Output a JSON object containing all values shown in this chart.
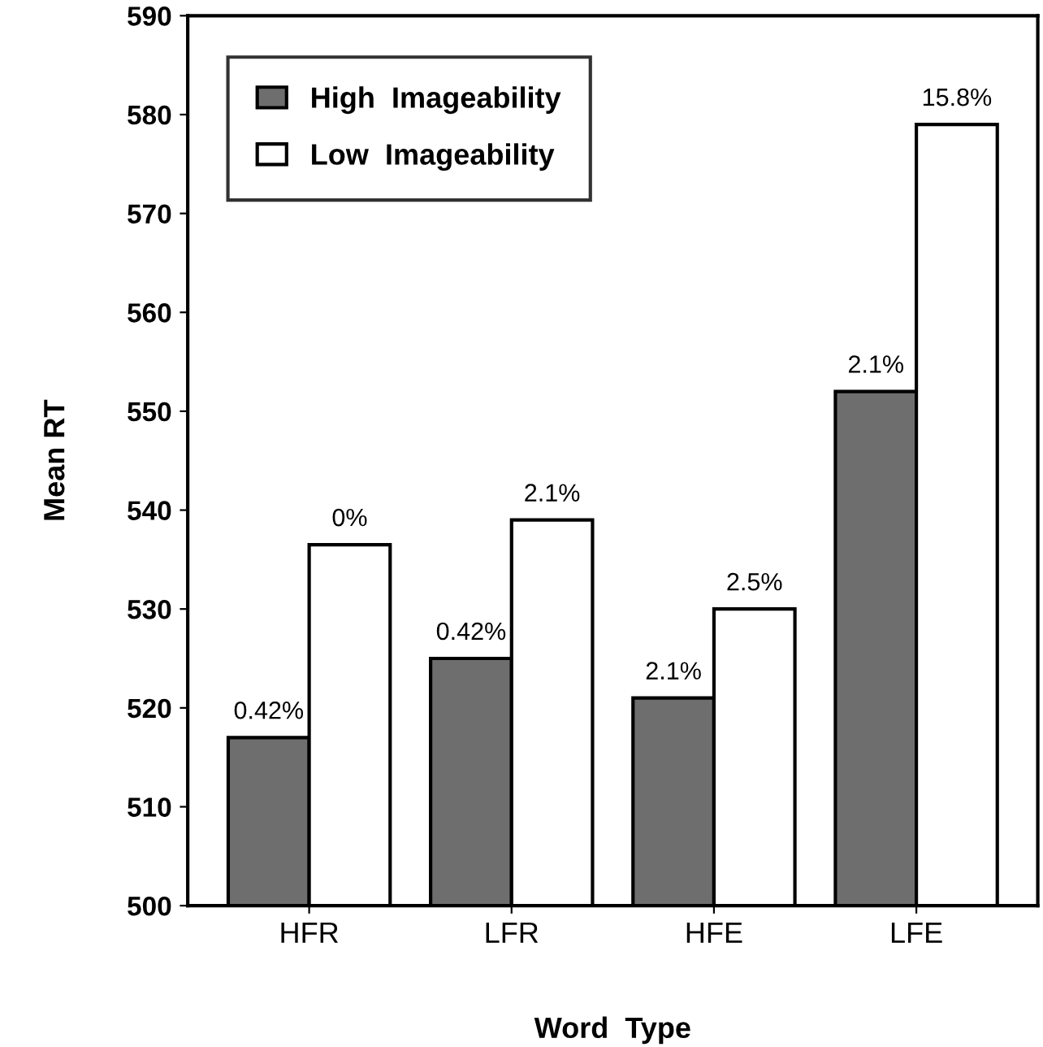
{
  "chart_data": {
    "type": "bar",
    "xlabel": "Word  Type",
    "ylabel": "Mean RT",
    "categories": [
      "HFR",
      "LFR",
      "HFE",
      "LFE"
    ],
    "series": [
      {
        "name": "High  Imageability",
        "color": "#6e6e6e",
        "values": [
          517,
          525,
          521,
          552
        ]
      },
      {
        "name": "Low  Imageability",
        "color": "#ffffff",
        "values": [
          536.5,
          539,
          530,
          579
        ]
      }
    ],
    "annotations": [
      {
        "text": "0.42%",
        "x": "HFR",
        "y": 517
      },
      {
        "text": "0%",
        "x": "HFR",
        "y": 536.5
      },
      {
        "text": "0.42%",
        "x": "LFR",
        "y": 525
      },
      {
        "text": "2.1%",
        "x": "LFR",
        "y": 539
      },
      {
        "text": "2.1%",
        "x": "HFE",
        "y": 521
      },
      {
        "text": "2.5%",
        "x": "HFE",
        "y": 530
      },
      {
        "text": "2.1%",
        "x": "LFE",
        "y": 552
      },
      {
        "text": "15.8%",
        "x": "LFE",
        "y": 579
      }
    ],
    "ylim": [
      500,
      590
    ],
    "yticks": [
      500,
      510,
      520,
      530,
      540,
      550,
      560,
      570,
      580,
      590
    ],
    "grid": false,
    "legend": "top left"
  }
}
